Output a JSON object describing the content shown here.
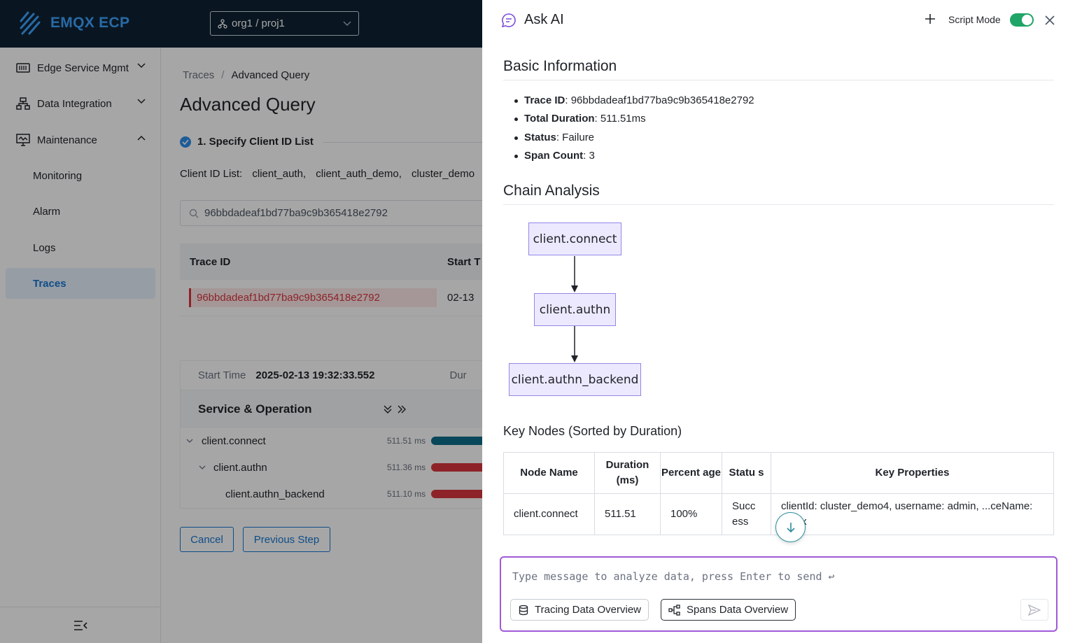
{
  "app": {
    "brand": "EMQX ECP",
    "org_project": "org1 / proj1"
  },
  "sidebar": {
    "items": [
      {
        "label": "Edge Service Mgmt",
        "icon": "server-icon"
      },
      {
        "label": "Data Integration",
        "icon": "network-icon"
      },
      {
        "label": "Maintenance",
        "icon": "monitor-icon"
      },
      {
        "label": "Monitoring"
      },
      {
        "label": "Alarm"
      },
      {
        "label": "Logs"
      },
      {
        "label": "Traces",
        "active": true
      }
    ]
  },
  "main": {
    "breadcrumb": [
      "Traces",
      "Advanced Query"
    ],
    "breadcrumb_sep": "/",
    "title": "Advanced Query",
    "step_label": "1. Specify Client ID List",
    "client_id_label": "Client ID List:",
    "client_ids": [
      "client_auth,",
      "client_auth_demo,",
      "cluster_demo"
    ],
    "search_value": "96bbdadeaf1bd77ba9c9b365418e2792",
    "table": {
      "headers": [
        "Trace ID",
        "Start T"
      ],
      "row": {
        "trace_id": "96bbdadeaf1bd77ba9c9b365418e2792",
        "start": "02-13"
      }
    },
    "detail": {
      "start_time_label": "Start Time",
      "start_time_value": "2025-02-13 19:32:33.552",
      "duration_label": "Dur",
      "service_header": "Service & Operation",
      "spans": [
        {
          "name": "client.connect",
          "duration": "511.51 ms",
          "color": "#0e6d8d"
        },
        {
          "name": "client.authn",
          "duration": "511.36 ms",
          "color": "#d9363e"
        },
        {
          "name": "client.authn_backend",
          "duration": "511.10 ms",
          "color": "#d9363e"
        }
      ]
    },
    "buttons": {
      "cancel": "Cancel",
      "previous": "Previous Step"
    }
  },
  "drawer": {
    "title": "Ask AI",
    "script_mode_label": "Script Mode",
    "script_mode_on": true,
    "basic_info_heading": "Basic Information",
    "basic_info": [
      {
        "key": "Trace ID",
        "value": ": 96bbdadeaf1bd77ba9c9b365418e2792"
      },
      {
        "key": "Total Duration",
        "value": ": 511.51ms"
      },
      {
        "key": "Status",
        "value": ": Failure"
      },
      {
        "key": "Span Count",
        "value": ": 3"
      }
    ],
    "chain_heading": "Chain Analysis",
    "chain_nodes": [
      "client.connect",
      "client.authn",
      "client.authn_backend"
    ],
    "key_nodes_heading": "Key Nodes (Sorted by Duration)",
    "key_nodes_table": {
      "headers": [
        "Node Name",
        "Duration (ms)",
        "Percent age",
        "Statu s",
        "Key Properties"
      ],
      "rows": [
        [
          "client.connect",
          "511.51",
          "100%",
          "Succ ess",
          "clientId: cluster_demo4, username: admin, ...ceName: emqx"
        ]
      ]
    },
    "composer": {
      "placeholder": "Type message to analyze data, press Enter to send ↩",
      "chips": [
        "Tracing Data Overview",
        "Spans Data Overview"
      ]
    }
  }
}
